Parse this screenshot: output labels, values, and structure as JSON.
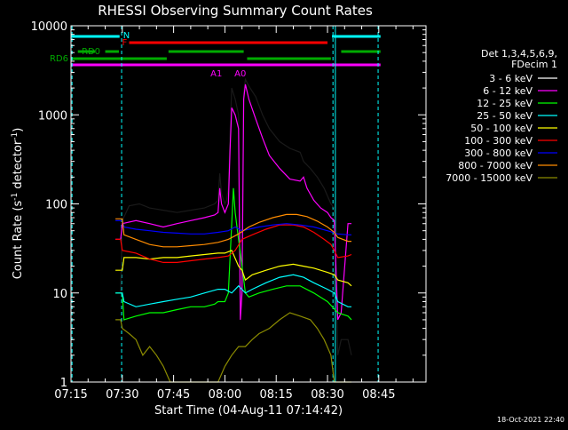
{
  "chart_data": {
    "type": "line",
    "title": "RHESSI Observing Summary Count Rates",
    "xlabel": "Start Time (04-Aug-11 07:14:42)",
    "ylabel_main": "Count Rate (s",
    "ylabel_sup1": "-1",
    "ylabel_mid": " detector",
    "ylabel_sup2": "-1",
    "ylabel_end": ")",
    "yscale": "log",
    "xlim_min": [
      7.25,
      8.98
    ],
    "ylim": [
      1,
      10000
    ],
    "xticks": [
      {
        "label": "07:15",
        "min": 435
      },
      {
        "label": "07:30",
        "min": 450
      },
      {
        "label": "07:45",
        "min": 465
      },
      {
        "label": "08:00",
        "min": 480
      },
      {
        "label": "08:15",
        "min": 495
      },
      {
        "label": "08:30",
        "min": 510
      },
      {
        "label": "08:45",
        "min": 525
      }
    ],
    "yticks": [
      {
        "label": "1",
        "v": 1
      },
      {
        "label": "10",
        "v": 10
      },
      {
        "label": "100",
        "v": 100
      },
      {
        "label": "1000",
        "v": 1000
      },
      {
        "label": "10000",
        "v": 10000
      }
    ],
    "timestamp": "18-Oct-2021 22:40",
    "legend_header": [
      "Det 1,3,4,5,6,9,",
      "FDecim 1"
    ],
    "series": [
      {
        "name": "3 - 6 keV",
        "color": "#000000",
        "points": [
          [
            448,
            10
          ],
          [
            449.5,
            10
          ],
          [
            450,
            65
          ],
          [
            452,
            95
          ],
          [
            455,
            100
          ],
          [
            458,
            90
          ],
          [
            462,
            85
          ],
          [
            466,
            80
          ],
          [
            470,
            85
          ],
          [
            474,
            90
          ],
          [
            477,
            100
          ],
          [
            478,
            110
          ],
          [
            478.5,
            220
          ],
          [
            479,
            130
          ],
          [
            480,
            100
          ],
          [
            480.5,
            110
          ],
          [
            481,
            150
          ],
          [
            481.5,
            600
          ],
          [
            482,
            2000
          ],
          [
            483,
            1500
          ],
          [
            484,
            1000
          ],
          [
            484.5,
            5
          ],
          [
            485,
            20
          ],
          [
            485.5,
            1800
          ],
          [
            486,
            2500
          ],
          [
            487,
            2100
          ],
          [
            489,
            1600
          ],
          [
            491,
            1000
          ],
          [
            493,
            700
          ],
          [
            496,
            500
          ],
          [
            499,
            420
          ],
          [
            502,
            380
          ],
          [
            503,
            300
          ],
          [
            505,
            250
          ],
          [
            507,
            200
          ],
          [
            509,
            150
          ],
          [
            511,
            100
          ],
          [
            512,
            90
          ],
          [
            513,
            2
          ],
          [
            514,
            3
          ],
          [
            516,
            3
          ],
          [
            517,
            2
          ]
        ]
      },
      {
        "name": "6 - 12 keV",
        "color": "#ff00ff",
        "points": [
          [
            448,
            40
          ],
          [
            449.5,
            40
          ],
          [
            450,
            60
          ],
          [
            454,
            65
          ],
          [
            458,
            60
          ],
          [
            462,
            55
          ],
          [
            466,
            60
          ],
          [
            470,
            65
          ],
          [
            474,
            70
          ],
          [
            477,
            75
          ],
          [
            478,
            80
          ],
          [
            478.5,
            150
          ],
          [
            479,
            100
          ],
          [
            480,
            80
          ],
          [
            481,
            100
          ],
          [
            481.5,
            400
          ],
          [
            482,
            1200
          ],
          [
            483,
            1000
          ],
          [
            484,
            700
          ],
          [
            484.5,
            5
          ],
          [
            485,
            10
          ],
          [
            485.5,
            1500
          ],
          [
            486,
            2200
          ],
          [
            487,
            1500
          ],
          [
            489,
            900
          ],
          [
            491,
            550
          ],
          [
            493,
            350
          ],
          [
            496,
            250
          ],
          [
            499,
            190
          ],
          [
            502,
            180
          ],
          [
            503,
            200
          ],
          [
            504,
            150
          ],
          [
            506,
            110
          ],
          [
            508,
            90
          ],
          [
            510,
            80
          ],
          [
            511,
            70
          ],
          [
            512,
            65
          ],
          [
            513,
            5
          ],
          [
            514,
            6
          ],
          [
            516,
            60
          ],
          [
            517,
            60
          ]
        ]
      },
      {
        "name": "12 - 25 keV",
        "color": "#00ff00",
        "points": [
          [
            448,
            10
          ],
          [
            450,
            10
          ],
          [
            450.5,
            5
          ],
          [
            454,
            5.5
          ],
          [
            458,
            6
          ],
          [
            462,
            6
          ],
          [
            466,
            6.5
          ],
          [
            470,
            7
          ],
          [
            474,
            7
          ],
          [
            477,
            7.5
          ],
          [
            478,
            8
          ],
          [
            480,
            8
          ],
          [
            481,
            10
          ],
          [
            482,
            60
          ],
          [
            482.5,
            150
          ],
          [
            483,
            80
          ],
          [
            484,
            40
          ],
          [
            485,
            20
          ],
          [
            486,
            10
          ],
          [
            487,
            9
          ],
          [
            490,
            10
          ],
          [
            494,
            11
          ],
          [
            498,
            12
          ],
          [
            502,
            12
          ],
          [
            506,
            10
          ],
          [
            510,
            8
          ],
          [
            513,
            6
          ],
          [
            516,
            5.5
          ],
          [
            517,
            5
          ]
        ]
      },
      {
        "name": "25 - 50 keV",
        "color": "#00ffff",
        "points": [
          [
            448,
            10
          ],
          [
            450,
            10
          ],
          [
            450.5,
            8
          ],
          [
            454,
            7
          ],
          [
            458,
            7.5
          ],
          [
            462,
            8
          ],
          [
            466,
            8.5
          ],
          [
            470,
            9
          ],
          [
            474,
            10
          ],
          [
            478,
            11
          ],
          [
            480,
            11
          ],
          [
            482,
            10
          ],
          [
            484,
            12
          ],
          [
            486,
            10
          ],
          [
            488,
            11
          ],
          [
            492,
            13
          ],
          [
            496,
            15
          ],
          [
            500,
            16
          ],
          [
            503,
            15
          ],
          [
            506,
            13
          ],
          [
            510,
            11
          ],
          [
            512,
            10
          ],
          [
            513,
            8
          ],
          [
            516,
            7
          ],
          [
            517,
            7
          ]
        ]
      },
      {
        "name": "50 - 100 keV",
        "color": "#ffff00",
        "points": [
          [
            448,
            18
          ],
          [
            450,
            18
          ],
          [
            450.5,
            25
          ],
          [
            454,
            25
          ],
          [
            458,
            24
          ],
          [
            462,
            25
          ],
          [
            466,
            25
          ],
          [
            470,
            26
          ],
          [
            474,
            27
          ],
          [
            478,
            28
          ],
          [
            480,
            28
          ],
          [
            482,
            30
          ],
          [
            484,
            20
          ],
          [
            485,
            18
          ],
          [
            486,
            14
          ],
          [
            488,
            16
          ],
          [
            492,
            18
          ],
          [
            496,
            20
          ],
          [
            500,
            21
          ],
          [
            503,
            20
          ],
          [
            506,
            19
          ],
          [
            510,
            17
          ],
          [
            512,
            16
          ],
          [
            513,
            14
          ],
          [
            516,
            13
          ],
          [
            517,
            12
          ]
        ]
      },
      {
        "name": "100 - 300 keV",
        "color": "#ff0000",
        "points": [
          [
            448,
            40
          ],
          [
            449.5,
            40
          ],
          [
            450,
            30
          ],
          [
            454,
            28
          ],
          [
            458,
            24
          ],
          [
            462,
            22
          ],
          [
            466,
            22
          ],
          [
            470,
            23
          ],
          [
            474,
            24
          ],
          [
            478,
            25
          ],
          [
            481,
            26
          ],
          [
            483,
            30
          ],
          [
            485,
            40
          ],
          [
            488,
            45
          ],
          [
            492,
            52
          ],
          [
            496,
            58
          ],
          [
            500,
            58
          ],
          [
            503,
            55
          ],
          [
            506,
            48
          ],
          [
            509,
            40
          ],
          [
            511,
            35
          ],
          [
            512,
            30
          ],
          [
            513,
            25
          ],
          [
            516,
            26
          ],
          [
            517,
            27
          ]
        ]
      },
      {
        "name": "300 - 800 keV",
        "color": "#0000ff",
        "points": [
          [
            448,
            65
          ],
          [
            450,
            65
          ],
          [
            450.5,
            55
          ],
          [
            454,
            52
          ],
          [
            458,
            50
          ],
          [
            462,
            48
          ],
          [
            466,
            47
          ],
          [
            470,
            46
          ],
          [
            474,
            46
          ],
          [
            478,
            48
          ],
          [
            481,
            50
          ],
          [
            483,
            55
          ],
          [
            485,
            50
          ],
          [
            487,
            52
          ],
          [
            490,
            55
          ],
          [
            494,
            58
          ],
          [
            498,
            60
          ],
          [
            502,
            58
          ],
          [
            506,
            55
          ],
          [
            510,
            50
          ],
          [
            513,
            46
          ],
          [
            516,
            45
          ],
          [
            517,
            45
          ]
        ]
      },
      {
        "name": "800 - 7000 keV",
        "color": "#ff8c00",
        "points": [
          [
            448,
            68
          ],
          [
            450,
            68
          ],
          [
            450.5,
            45
          ],
          [
            454,
            40
          ],
          [
            458,
            35
          ],
          [
            462,
            33
          ],
          [
            466,
            33
          ],
          [
            470,
            34
          ],
          [
            474,
            35
          ],
          [
            478,
            37
          ],
          [
            481,
            40
          ],
          [
            484,
            46
          ],
          [
            487,
            55
          ],
          [
            490,
            62
          ],
          [
            494,
            70
          ],
          [
            498,
            76
          ],
          [
            501,
            76
          ],
          [
            504,
            72
          ],
          [
            507,
            64
          ],
          [
            510,
            55
          ],
          [
            512,
            48
          ],
          [
            513,
            42
          ],
          [
            516,
            38
          ],
          [
            517,
            38
          ]
        ]
      },
      {
        "name": "7000 - 15000 keV",
        "color": "#8b8b00",
        "points": [
          [
            448,
            5
          ],
          [
            449.5,
            5
          ],
          [
            450,
            4
          ],
          [
            452,
            3.5
          ],
          [
            454,
            3
          ],
          [
            456,
            2
          ],
          [
            458,
            2.5
          ],
          [
            460,
            2
          ],
          [
            462,
            1.5
          ],
          [
            464,
            1
          ],
          [
            466,
            1
          ],
          [
            470,
            1
          ],
          [
            474,
            1
          ],
          [
            476,
            1
          ],
          [
            478,
            1
          ],
          [
            480,
            1.5
          ],
          [
            482,
            2
          ],
          [
            484,
            2.5
          ],
          [
            486,
            2.5
          ],
          [
            488,
            3
          ],
          [
            490,
            3.5
          ],
          [
            493,
            4
          ],
          [
            496,
            5
          ],
          [
            499,
            6
          ],
          [
            502,
            5.5
          ],
          [
            505,
            5
          ],
          [
            507,
            4
          ],
          [
            509,
            3
          ],
          [
            511,
            2
          ],
          [
            512,
            1
          ],
          [
            516,
            1
          ],
          [
            517,
            1
          ]
        ]
      }
    ],
    "attenuator_labels": [
      {
        "text": "A1",
        "min": 477.5
      },
      {
        "text": "A0",
        "min": 484.5
      }
    ],
    "flag_bars": {
      "N": {
        "label": "N",
        "color": "#00ffff",
        "segments": [
          [
            435,
            449.2
          ],
          [
            511.3,
            525.5
          ]
        ]
      },
      "F": {
        "label": "F",
        "color": "#ff0000",
        "segments": [
          [
            452,
            510
          ]
        ]
      },
      "RD0": {
        "label": "RD0",
        "color": "#00aa00",
        "segments": [
          [
            437,
            442
          ],
          [
            445,
            449
          ],
          [
            463.5,
            485.5
          ],
          [
            514,
            525.5
          ]
        ]
      },
      "RD6": {
        "label": "RD6",
        "color": "#00aa00",
        "segments": [
          [
            435,
            463
          ],
          [
            486.5,
            511
          ]
        ]
      },
      "ATT": {
        "label": "",
        "color": "#ff00ff",
        "segments": [
          [
            435,
            525.5
          ]
        ]
      }
    },
    "saa_lines": [
      435.3,
      449.8,
      511.6,
      524.8
    ]
  }
}
